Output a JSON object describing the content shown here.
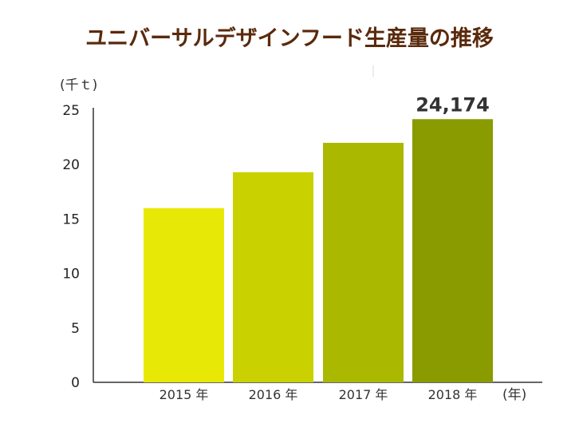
{
  "chart_data": {
    "type": "bar",
    "title": "ユニバーサルデザインフード生産量の推移",
    "ylabel": "(千ｔ)",
    "xlabel": "(年)",
    "categories": [
      "2015 年",
      "2016 年",
      "2017 年",
      "2018 年"
    ],
    "values": [
      16.0,
      19.3,
      22.0,
      24.174
    ],
    "ylim": [
      0,
      25
    ],
    "yticks": [
      "0",
      "5",
      "10",
      "15",
      "20",
      "25"
    ],
    "yticks_values": [
      0,
      5,
      10,
      15,
      20,
      25
    ],
    "annotations": [
      {
        "category": "2018 年",
        "text": "24,174"
      }
    ],
    "bar_colors": [
      "#e8e806",
      "#cad100",
      "#aab900",
      "#8a9b00"
    ],
    "grid": false,
    "legend": "none"
  }
}
